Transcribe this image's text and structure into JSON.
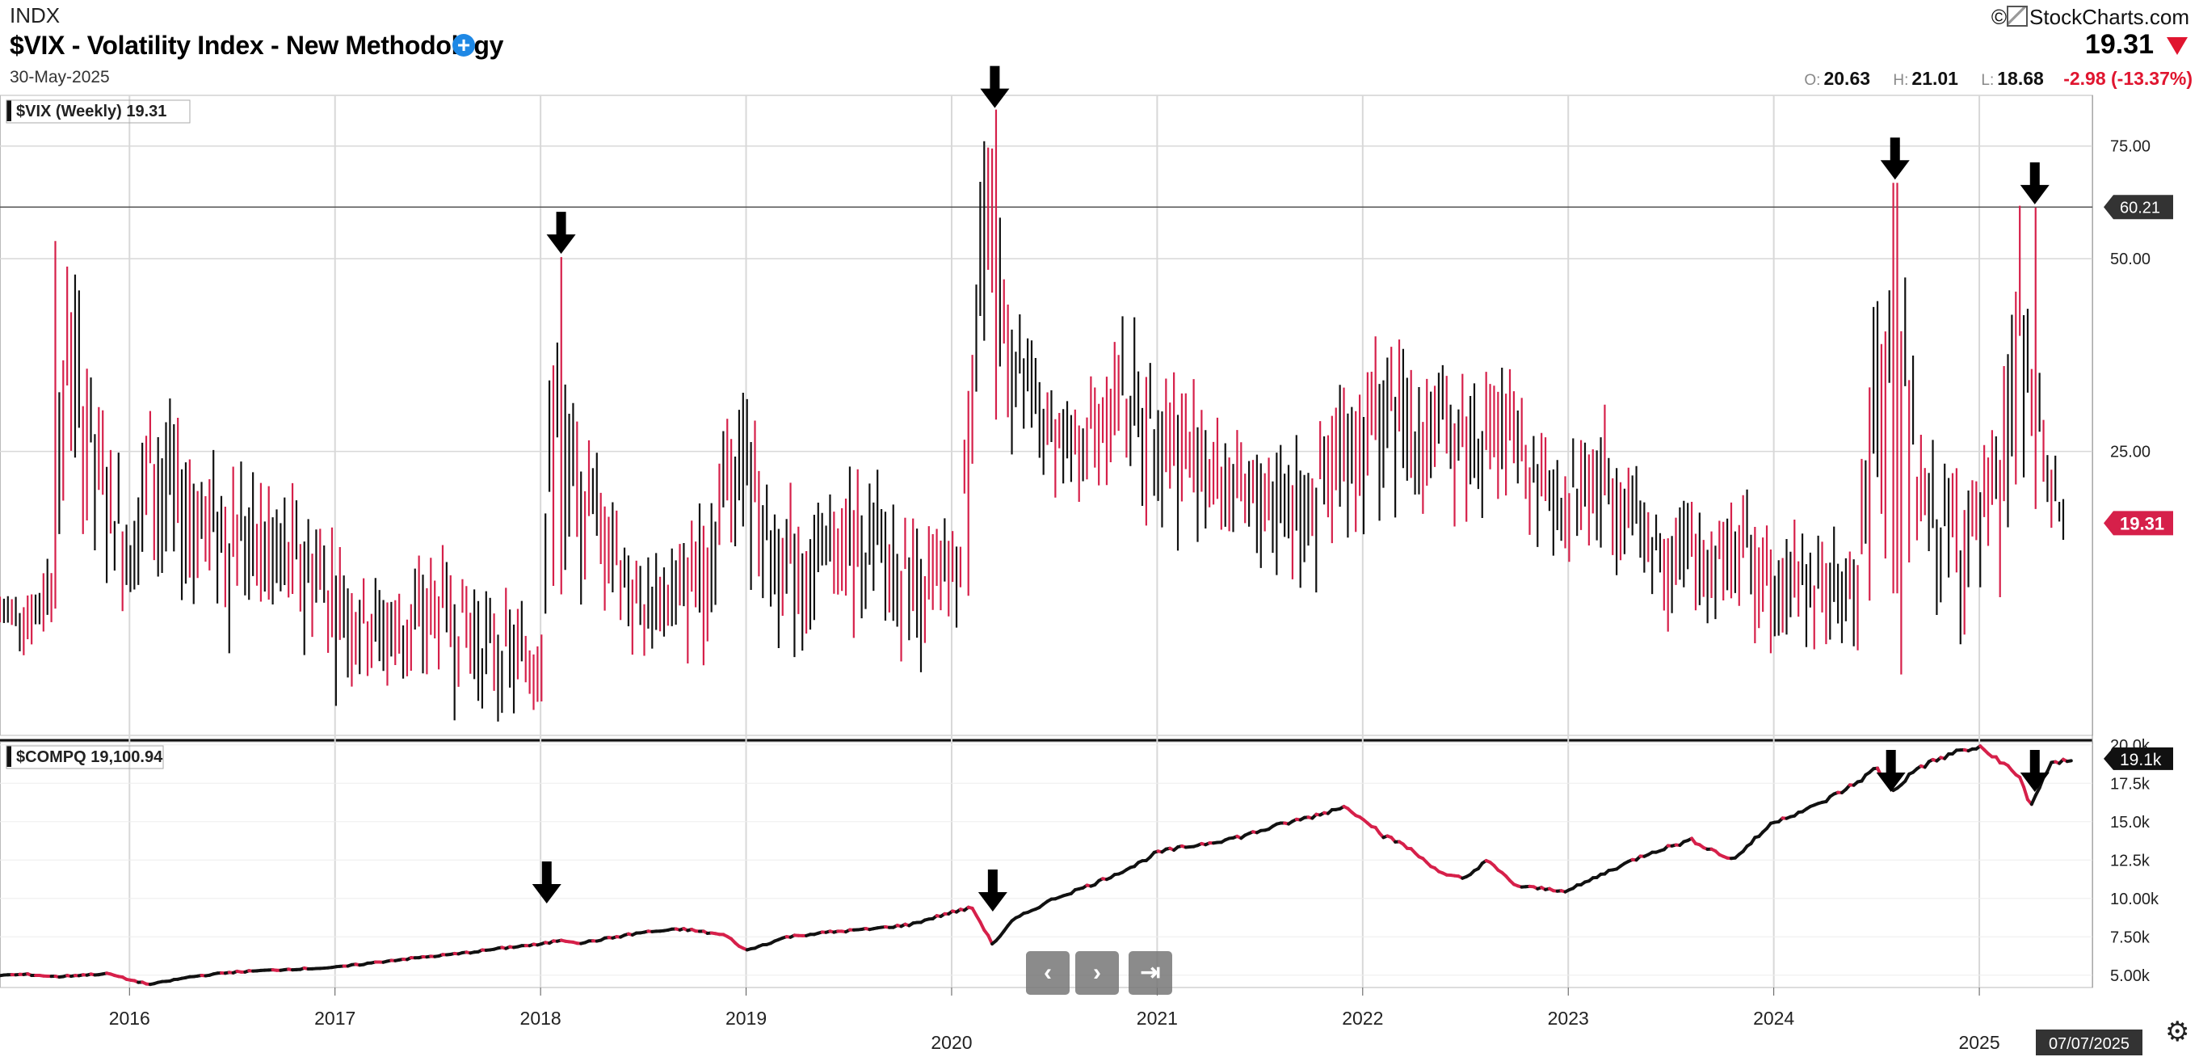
{
  "header": {
    "exchange": "INDX",
    "title": "$VIX - Volatility Index - New Methodology",
    "date": "30-May-2025",
    "brand": "StockCharts.com",
    "last": "19.31",
    "open_label": "O:",
    "open": "20.63",
    "high_label": "H:",
    "high": "21.01",
    "low_label": "L:",
    "low": "18.68",
    "change": "-2.98 (-13.37%)"
  },
  "controls": {
    "prev_icon": "chevron-left-icon",
    "next_icon": "chevron-right-icon",
    "end_icon": "skip-to-end-icon",
    "settings_icon": "gear-icon",
    "current_date": "07/07/2025"
  },
  "colors": {
    "up": "#111111",
    "down": "#d6204a",
    "accent": "#e0152f",
    "grid": "#d8d8d8"
  },
  "chart_data": [
    {
      "type": "line",
      "name": "vix-panel",
      "panel_label": "$VIX (Weekly) 19.31",
      "scale": "log",
      "ylim": [
        9,
        90
      ],
      "y_ticks": [
        "75.00",
        "50.00",
        "25.00"
      ],
      "y_tick_values": [
        75,
        50,
        25
      ],
      "horizontal_line": {
        "value": 60.21,
        "label": "60.21"
      },
      "last_label": "19.31",
      "x_ticks": [
        "2016",
        "2017",
        "2018",
        "2019",
        "2020",
        "2021",
        "2022",
        "2023",
        "2024",
        "2025"
      ],
      "x_tick_years": [
        2016,
        2017,
        2018,
        2019,
        2020,
        2021,
        2022,
        2023,
        2024,
        2025
      ],
      "xlim": [
        2015.37,
        2025.55
      ],
      "series": [
        {
          "values_description": "weekly high",
          "x": [
            2015.4,
            2015.55,
            2015.62,
            2015.7,
            2015.85,
            2016.0,
            2016.1,
            2016.3,
            2016.5,
            2016.7,
            2016.9,
            2017.1,
            2017.3,
            2017.5,
            2017.7,
            2017.9,
            2018.0,
            2018.08,
            2018.15,
            2018.3,
            2018.5,
            2018.7,
            2018.85,
            2018.97,
            2019.1,
            2019.3,
            2019.5,
            2019.7,
            2019.9,
            2020.05,
            2020.15,
            2020.2,
            2020.3,
            2020.45,
            2020.6,
            2020.8,
            2021.0,
            2021.2,
            2021.4,
            2021.6,
            2021.8,
            2021.95,
            2022.1,
            2022.3,
            2022.5,
            2022.7,
            2022.85,
            2023.0,
            2023.2,
            2023.4,
            2023.6,
            2023.8,
            2024.0,
            2024.2,
            2024.4,
            2024.58,
            2024.7,
            2024.9,
            2025.0,
            2025.1,
            2025.2,
            2025.25,
            2025.32,
            2025.4
          ],
          "values": [
            15.5,
            16,
            19,
            53.3,
            30,
            22,
            32,
            26,
            25,
            23,
            21,
            17,
            16,
            18,
            16,
            14.5,
            14,
            50.3,
            30,
            24,
            17,
            19,
            25,
            36,
            24,
            20,
            24,
            22,
            19,
            20,
            85.5,
            75,
            43,
            33,
            30,
            40,
            37,
            32,
            26,
            27,
            28,
            36,
            38,
            35,
            34,
            34,
            27,
            26,
            29,
            22,
            21,
            23,
            20,
            19,
            18,
            65.7,
            26,
            24,
            24,
            28,
            60.1,
            38,
            29,
            22
          ]
        },
        {
          "values_description": "weekly low",
          "x": [
            2015.4,
            2015.55,
            2015.62,
            2015.7,
            2015.85,
            2016.0,
            2016.1,
            2016.3,
            2016.5,
            2016.7,
            2016.9,
            2017.1,
            2017.3,
            2017.5,
            2017.7,
            2017.9,
            2018.0,
            2018.08,
            2018.15,
            2018.3,
            2018.5,
            2018.7,
            2018.85,
            2018.97,
            2019.1,
            2019.3,
            2019.5,
            2019.7,
            2019.9,
            2020.05,
            2020.15,
            2020.2,
            2020.3,
            2020.45,
            2020.6,
            2020.8,
            2021.0,
            2021.2,
            2021.4,
            2021.6,
            2021.8,
            2021.95,
            2022.1,
            2022.3,
            2022.5,
            2022.7,
            2022.85,
            2023.0,
            2023.2,
            2023.4,
            2023.6,
            2023.8,
            2024.0,
            2024.2,
            2024.4,
            2024.58,
            2024.7,
            2024.9,
            2025.0,
            2025.1,
            2025.2,
            2025.25,
            2025.32,
            2025.4
          ],
          "values": [
            12.5,
            12,
            13,
            18,
            16,
            13,
            15,
            14,
            12.5,
            12,
            11.5,
            10.5,
            10,
            10.5,
            9.5,
            9.3,
            9.5,
            14.5,
            16,
            14,
            11.5,
            12,
            13,
            17,
            13,
            12,
            13,
            12,
            12,
            13,
            23,
            29,
            23,
            22,
            21,
            22,
            19,
            17,
            16,
            15.5,
            15,
            15.5,
            19,
            20,
            19,
            20,
            18,
            17,
            17,
            14,
            13,
            12.8,
            12.5,
            11.8,
            11.8,
            15,
            15,
            13,
            14,
            14,
            17,
            21,
            19,
            18
          ]
        }
      ]
    },
    {
      "type": "line",
      "name": "compq-panel",
      "panel_label": "$COMPQ 19,100.94",
      "ylim": [
        4200,
        20200
      ],
      "y_ticks": [
        "20.0k",
        "17.5k",
        "15.0k",
        "12.5k",
        "10.00k",
        "7.50k",
        "5.00k"
      ],
      "y_tick_values": [
        20000,
        17500,
        15000,
        12500,
        10000,
        7500,
        5000
      ],
      "last_label": "19.1k",
      "series": [
        {
          "x": [
            2015.37,
            2015.5,
            2015.65,
            2015.75,
            2015.9,
            2016.0,
            2016.1,
            2016.3,
            2016.5,
            2016.8,
            2017.0,
            2017.3,
            2017.6,
            2017.9,
            2018.0,
            2018.1,
            2018.2,
            2018.5,
            2018.7,
            2018.9,
            2019.0,
            2019.2,
            2019.4,
            2019.6,
            2019.8,
            2020.0,
            2020.1,
            2020.2,
            2020.3,
            2020.5,
            2020.7,
            2020.9,
            2021.0,
            2021.2,
            2021.4,
            2021.6,
            2021.8,
            2021.9,
            2022.0,
            2022.1,
            2022.2,
            2022.4,
            2022.5,
            2022.6,
            2022.75,
            2022.9,
            2023.0,
            2023.2,
            2023.4,
            2023.6,
            2023.8,
            2024.0,
            2024.2,
            2024.4,
            2024.5,
            2024.58,
            2024.7,
            2024.9,
            2025.0,
            2025.1,
            2025.2,
            2025.25,
            2025.3,
            2025.35,
            2025.45
          ],
          "values": [
            5000,
            5050,
            4900,
            5000,
            5100,
            4700,
            4400,
            4900,
            5200,
            5400,
            5500,
            6000,
            6400,
            6900,
            7000,
            7300,
            7100,
            7800,
            8000,
            7600,
            6600,
            7500,
            7800,
            8000,
            8300,
            9100,
            9400,
            7000,
            8600,
            10000,
            11000,
            12200,
            13000,
            13500,
            14000,
            14800,
            15500,
            16000,
            15300,
            14100,
            13500,
            11500,
            11300,
            12500,
            10800,
            10600,
            10500,
            11800,
            13000,
            13800,
            12500,
            15000,
            16000,
            17500,
            18500,
            17000,
            18500,
            19600,
            19800,
            19000,
            17800,
            16000,
            17500,
            18700,
            19100
          ]
        }
      ]
    }
  ]
}
